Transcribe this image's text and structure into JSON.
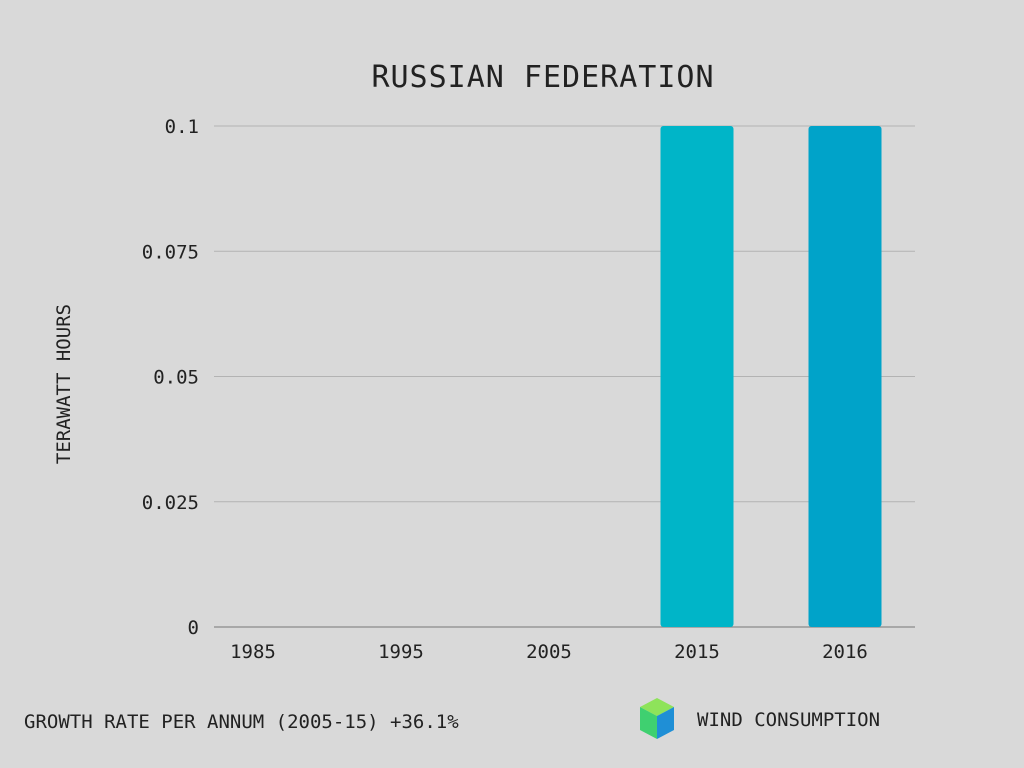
{
  "chart_data": {
    "type": "bar",
    "title": "RUSSIAN FEDERATION",
    "ylabel": "TERAWATT HOURS",
    "xlabel": "",
    "categories": [
      "1985",
      "1995",
      "2005",
      "2015",
      "2016"
    ],
    "series": [
      {
        "name": "WIND CONSUMPTION",
        "values": [
          0,
          0,
          0,
          0.1,
          0.1
        ],
        "bar_colors": [
          "#00b5c8",
          "#00b5c8",
          "#00b5c8",
          "#00b5c8",
          "#00a3c9"
        ]
      }
    ],
    "ylim": [
      0,
      0.1
    ],
    "yticks": [
      0,
      0.025,
      0.05,
      0.075,
      0.1
    ],
    "ytick_labels": [
      "0",
      "0.025",
      "0.05",
      "0.075",
      "0.1"
    ],
    "grid": true,
    "legend_position": "bottom-right"
  },
  "footer": {
    "growth_text": "GROWTH RATE PER ANNUM (2005-15) +36.1%"
  },
  "legend": {
    "label": "WIND CONSUMPTION",
    "icon": "cube-icon",
    "icon_colors": {
      "top": "#8ee35a",
      "left": "#3fd070",
      "right": "#1f8fd6"
    }
  },
  "colors": {
    "background": "#d9d9d9",
    "text": "#222222",
    "grid": "#b3b3b3"
  }
}
